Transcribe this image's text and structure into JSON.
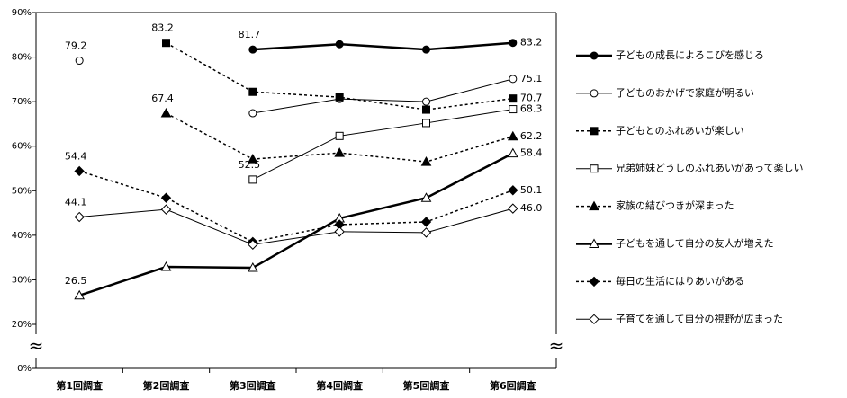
{
  "chart_data": {
    "type": "line",
    "categories": [
      "第1回調査",
      "第2回調査",
      "第3回調査",
      "第4回調査",
      "第5回調査",
      "第6回調査"
    ],
    "ylim": [
      0,
      90
    ],
    "axis_break": [
      0,
      20
    ],
    "yticks": [
      {
        "value": 0,
        "label": "0%"
      },
      {
        "value": 20,
        "label": "20%"
      },
      {
        "value": 30,
        "label": "30%"
      },
      {
        "value": 40,
        "label": "40%"
      },
      {
        "value": 50,
        "label": "50%"
      },
      {
        "value": 60,
        "label": "60%"
      },
      {
        "value": 70,
        "label": "70%"
      },
      {
        "value": 80,
        "label": "80%"
      },
      {
        "value": 90,
        "label": "90%"
      }
    ],
    "grid": false,
    "legend": "right",
    "series": [
      {
        "name": "子どもの成長によろこびを感じる",
        "color": "#000000",
        "marker": "circle",
        "filled": true,
        "dashed": false,
        "width": 2.5,
        "values": [
          null,
          null,
          81.7,
          82.9,
          81.7,
          83.2
        ],
        "value_labels": [
          null,
          null,
          "81.7",
          null,
          null,
          "83.2"
        ]
      },
      {
        "name": "子どものおかげで家庭が明るい",
        "color": "#000000",
        "marker": "circle",
        "filled": false,
        "dashed": false,
        "width": 1,
        "values": [
          79.2,
          null,
          67.4,
          70.6,
          70.0,
          75.1
        ],
        "value_labels": [
          "79.2",
          null,
          null,
          null,
          null,
          "75.1"
        ]
      },
      {
        "name": "子どもとのふれあいが楽しい",
        "color": "#000000",
        "marker": "square",
        "filled": true,
        "dashed": true,
        "width": 1.5,
        "values": [
          null,
          83.2,
          72.2,
          71.0,
          68.2,
          70.7
        ],
        "value_labels": [
          null,
          "83.2",
          null,
          null,
          null,
          "70.7"
        ]
      },
      {
        "name": "兄弟姉妹どうしのふれあいがあって楽しい",
        "color": "#000000",
        "marker": "square",
        "filled": false,
        "dashed": false,
        "width": 1,
        "values": [
          null,
          null,
          52.5,
          62.3,
          65.2,
          68.3
        ],
        "value_labels": [
          null,
          null,
          "52.5",
          null,
          null,
          "68.3"
        ]
      },
      {
        "name": "家族の結びつきが深まった",
        "color": "#000000",
        "marker": "triangle",
        "filled": true,
        "dashed": true,
        "width": 1.5,
        "values": [
          null,
          67.4,
          57.1,
          58.5,
          56.5,
          62.2
        ],
        "value_labels": [
          null,
          "67.4",
          null,
          null,
          null,
          "62.2"
        ]
      },
      {
        "name": "子どもを通して自分の友人が増えた",
        "color": "#000000",
        "marker": "triangle",
        "filled": false,
        "dashed": false,
        "width": 2.5,
        "values": [
          26.5,
          32.9,
          32.7,
          43.8,
          48.4,
          58.4
        ],
        "value_labels": [
          "26.5",
          null,
          null,
          null,
          null,
          "58.4"
        ]
      },
      {
        "name": "毎日の生活にはりあいがある",
        "color": "#000000",
        "marker": "diamond",
        "filled": true,
        "dashed": true,
        "width": 1.5,
        "values": [
          54.4,
          48.4,
          38.5,
          42.4,
          43.0,
          50.1
        ],
        "value_labels": [
          "54.4",
          null,
          null,
          null,
          null,
          "50.1"
        ]
      },
      {
        "name": "子育てを通して自分の視野が広まった",
        "color": "#000000",
        "marker": "diamond",
        "filled": false,
        "dashed": false,
        "width": 1,
        "values": [
          44.1,
          45.8,
          37.9,
          40.8,
          40.6,
          46.0
        ],
        "value_labels": [
          "44.1",
          null,
          null,
          null,
          null,
          "46.0"
        ]
      }
    ]
  }
}
